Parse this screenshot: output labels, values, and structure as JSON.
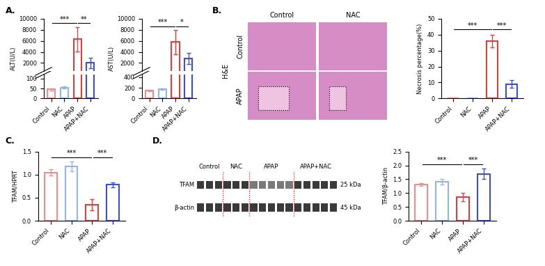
{
  "panels": [
    "A.",
    "B.",
    "C.",
    "D."
  ],
  "chart_data": [
    {
      "type": "bar",
      "y_label": "ALT(U/L)",
      "categories": [
        "Control",
        "NAC",
        "APAP",
        "APAP+NAC"
      ],
      "values": [
        45,
        55,
        6300,
        2000
      ],
      "errors": [
        5,
        6,
        2200,
        900
      ],
      "colors": [
        "#f08c8c",
        "#8fb6e8",
        "#e0403c",
        "#3a4fd6"
      ],
      "ylim": [
        [
          0,
          120
        ],
        [
          500,
          10000
        ]
      ],
      "yticks": [
        0,
        50,
        100,
        2000,
        4000,
        6000,
        8000,
        10000
      ],
      "annotations": [
        {
          "from": 0,
          "to": 2,
          "text": "***"
        },
        {
          "from": 2,
          "to": 3,
          "text": "**"
        }
      ]
    },
    {
      "type": "bar",
      "y_label": "AST(U/L)",
      "categories": [
        "Control",
        "NAC",
        "APAP",
        "APAP+NAC"
      ],
      "values": [
        150,
        170,
        5800,
        2800
      ],
      "errors": [
        15,
        15,
        2200,
        1000
      ],
      "colors": [
        "#f08c8c",
        "#8fb6e8",
        "#e0403c",
        "#3a4fd6"
      ],
      "ylim": [
        [
          0,
          450
        ],
        [
          500,
          10000
        ]
      ],
      "yticks": [
        0,
        200,
        400,
        2000,
        4000,
        6000,
        8000,
        10000
      ],
      "annotations": [
        {
          "from": 0,
          "to": 2,
          "text": "***"
        },
        {
          "from": 2,
          "to": 3,
          "text": "*"
        }
      ]
    },
    {
      "type": "bar",
      "y_label": "Necrosis percentage(%)",
      "categories": [
        "Control",
        "NAC",
        "APAP",
        "APAP+NAC"
      ],
      "values": [
        0.3,
        0.2,
        36,
        9
      ],
      "errors": [
        0.2,
        0.1,
        4,
        2.5
      ],
      "colors": [
        "#f08c8c",
        "#8fb6e8",
        "#e0403c",
        "#3a4fd6"
      ],
      "ylim": [
        0,
        50
      ],
      "yticks": [
        0,
        10,
        20,
        30,
        40,
        50
      ],
      "annotations": [
        {
          "from": 0,
          "to": 2,
          "text": "***"
        },
        {
          "from": 2,
          "to": 3,
          "text": "***"
        }
      ]
    },
    {
      "type": "bar",
      "y_label": "TFAM/HPRT",
      "categories": [
        "Control",
        "NAC",
        "APAP",
        "APAP+NAC"
      ],
      "values": [
        1.05,
        1.18,
        0.35,
        0.78
      ],
      "errors": [
        0.07,
        0.1,
        0.12,
        0.05
      ],
      "colors": [
        "#f08c8c",
        "#8fb6e8",
        "#e0403c",
        "#3a4fd6"
      ],
      "ylim": [
        0,
        1.5
      ],
      "yticks": [
        {
          "value": 0,
          "label": "0.0"
        },
        {
          "value": 0.5,
          "label": "0.5"
        },
        {
          "value": 1,
          "label": "1.0"
        },
        {
          "value": 1.5,
          "label": "1.5"
        }
      ],
      "annotations": [
        {
          "from": 0,
          "to": 2,
          "text": "***"
        },
        {
          "from": 2,
          "to": 3,
          "text": "***"
        }
      ]
    },
    {
      "type": "bar",
      "y_label": "TFAM/β-actin",
      "categories": [
        "Control",
        "NAC",
        "APAP",
        "APAP+NAC"
      ],
      "values": [
        1.3,
        1.4,
        0.85,
        1.7
      ],
      "errors": [
        0.05,
        0.1,
        0.15,
        0.2
      ],
      "colors": [
        "#f08c8c",
        "#8fb6e8",
        "#e0403c",
        "#3a4fd6"
      ],
      "ylim": [
        0,
        2.5
      ],
      "yticks": [
        {
          "value": 0,
          "label": "0.0"
        },
        {
          "value": 0.5,
          "label": "0.5"
        },
        {
          "value": 1,
          "label": "1.0"
        },
        {
          "value": 1.5,
          "label": "1.5"
        },
        {
          "value": 2,
          "label": "2.0"
        },
        {
          "value": 2.5,
          "label": "2.5"
        }
      ],
      "annotations": [
        {
          "from": 0,
          "to": 2,
          "text": "***"
        },
        {
          "from": 2,
          "to": 3,
          "text": "***"
        }
      ]
    }
  ],
  "histology": {
    "columns": [
      "Control",
      "NAC"
    ],
    "rows": [
      "Control",
      "APAP"
    ],
    "stain": "H&E"
  },
  "blot": {
    "groups": [
      "Control",
      "NAC",
      "APAP",
      "APAP+NAC"
    ],
    "lanes": [
      3,
      3,
      5,
      5
    ],
    "bands": [
      {
        "name": "TFAM",
        "size": "25 kDa"
      },
      {
        "name": "β-actin",
        "size": "45 kDa"
      }
    ]
  }
}
